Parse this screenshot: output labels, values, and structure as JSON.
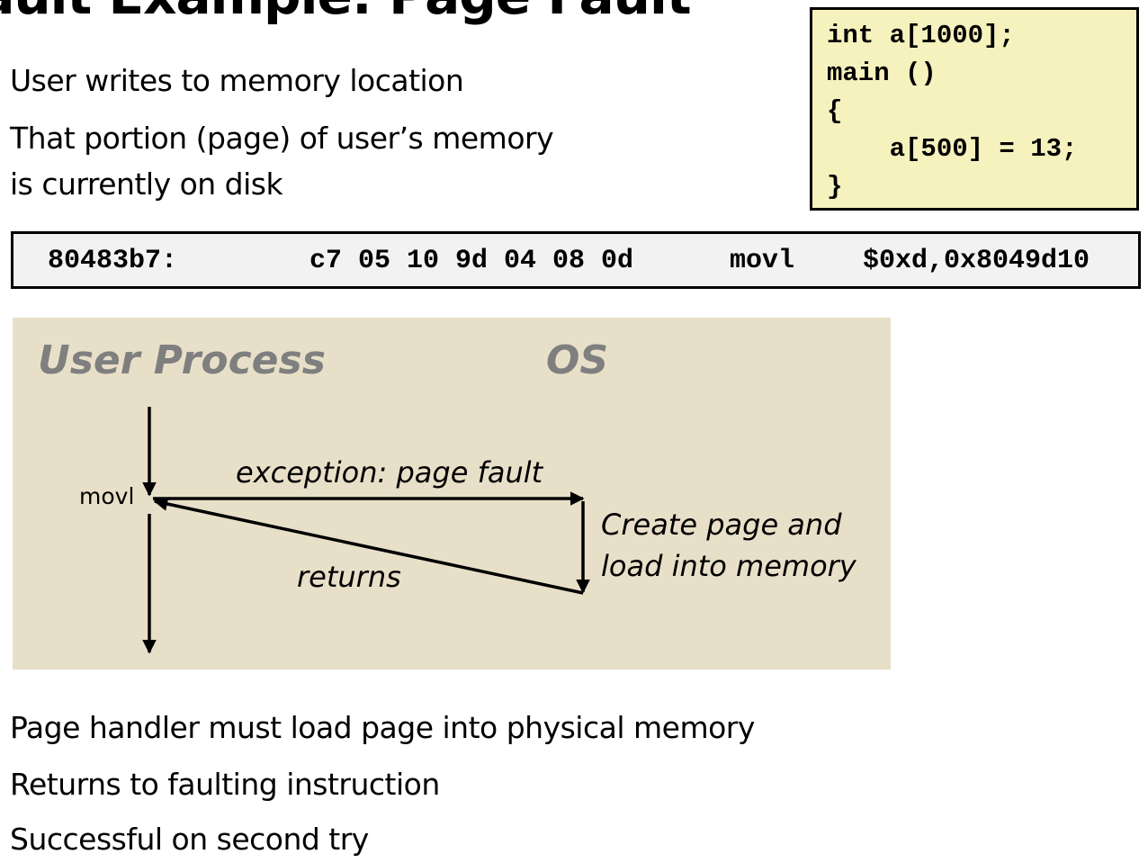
{
  "title": "Fault Example: Page Fault",
  "top_bullets": [
    "User writes to memory location",
    "That portion (page) of user’s memory",
    "is currently on disk"
  ],
  "code": [
    "int a[1000];",
    "main ()",
    "{",
    "    a[500] = 13;",
    "}"
  ],
  "asm": {
    "address": "80483b7:",
    "bytes": "c7 05 10 9d 04 08 0d",
    "mnemonic": "movl",
    "operands": "$0xd,0x8049d10"
  },
  "diagram": {
    "user_process_label": "User Process",
    "os_label": "OS",
    "movl_label": "movl",
    "exception_label": "exception: page fault",
    "handler_label_line1": "Create page and",
    "handler_label_line2": "load into memory",
    "returns_label": "returns"
  },
  "bottom_bullets": [
    "Page handler must load page into physical memory",
    "Returns to faulting instruction",
    "Successful on second try"
  ],
  "colors": {
    "code_box_bg": "#f5f2bd",
    "asm_box_bg": "#f2f2f2",
    "diagram_bg": "#e8dfc8",
    "lane_label": "#7f7f7f"
  }
}
